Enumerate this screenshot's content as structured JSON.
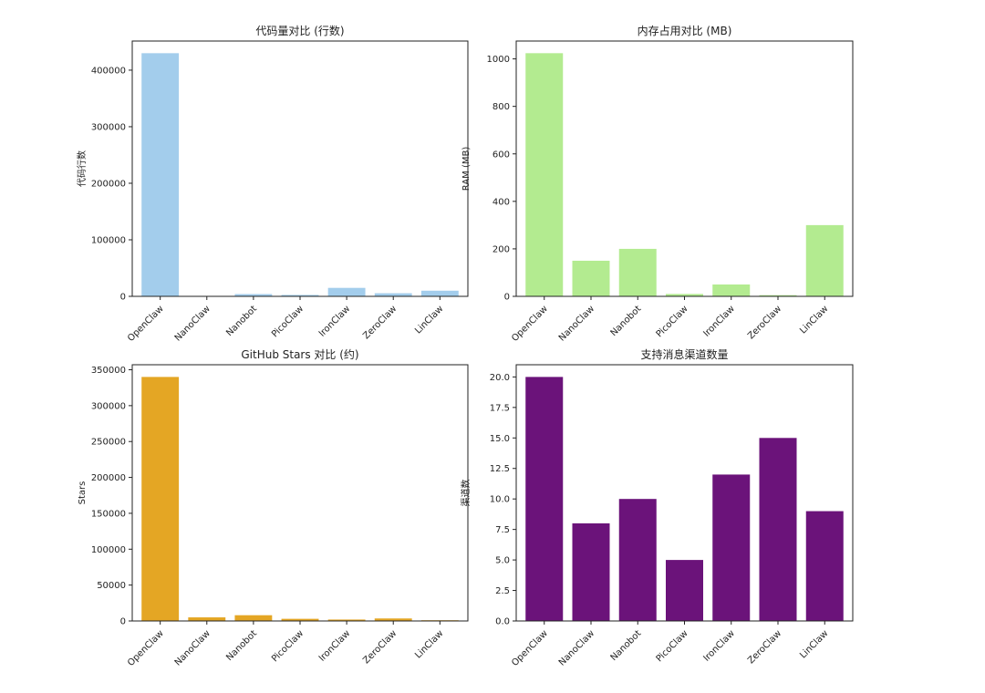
{
  "chart_data": [
    {
      "type": "bar",
      "title": "代码量对比 (行数)",
      "xlabel": "",
      "ylabel": "代码行数",
      "categories": [
        "OpenClaw",
        "NanoClaw",
        "Nanobot",
        "PicoClaw",
        "IronClaw",
        "ZeroClaw",
        "LinClaw"
      ],
      "values": [
        430000,
        500,
        4000,
        2500,
        15000,
        5500,
        10000
      ],
      "ylim": [
        0,
        451500
      ],
      "yticks": [
        0,
        100000,
        200000,
        300000,
        400000
      ],
      "ytick_labels": [
        "0",
        "100000",
        "200000",
        "300000",
        "400000"
      ],
      "color": "#a3cdec"
    },
    {
      "type": "bar",
      "title": "内存占用对比 (MB)",
      "xlabel": "",
      "ylabel": "RAM (MB)",
      "categories": [
        "OpenClaw",
        "NanoClaw",
        "Nanobot",
        "PicoClaw",
        "IronClaw",
        "ZeroClaw",
        "LinClaw"
      ],
      "values": [
        1024,
        150,
        200,
        10,
        50,
        5,
        300
      ],
      "ylim": [
        0,
        1075.2
      ],
      "yticks": [
        0,
        200,
        400,
        600,
        800,
        1000
      ],
      "ytick_labels": [
        "0",
        "200",
        "400",
        "600",
        "800",
        "1000"
      ],
      "color": "#b3eb90"
    },
    {
      "type": "bar",
      "title": "GitHub Stars 对比 (约)",
      "xlabel": "",
      "ylabel": "Stars",
      "categories": [
        "OpenClaw",
        "NanoClaw",
        "Nanobot",
        "PicoClaw",
        "IronClaw",
        "ZeroClaw",
        "LinClaw"
      ],
      "values": [
        340000,
        5000,
        8000,
        3000,
        2000,
        3500,
        1000
      ],
      "ylim": [
        0,
        357000
      ],
      "yticks": [
        0,
        50000,
        100000,
        150000,
        200000,
        250000,
        300000,
        350000
      ],
      "ytick_labels": [
        "0",
        "50000",
        "100000",
        "150000",
        "200000",
        "250000",
        "300000",
        "350000"
      ],
      "color": "#e4a624"
    },
    {
      "type": "bar",
      "title": "支持消息渠道数量",
      "xlabel": "",
      "ylabel": "渠道数",
      "categories": [
        "OpenClaw",
        "NanoClaw",
        "Nanobot",
        "PicoClaw",
        "IronClaw",
        "ZeroClaw",
        "LinClaw"
      ],
      "values": [
        20,
        8,
        10,
        5,
        12,
        15,
        9
      ],
      "ylim": [
        0,
        21
      ],
      "yticks": [
        0,
        2.5,
        5,
        7.5,
        10,
        12.5,
        15,
        17.5,
        20
      ],
      "ytick_labels": [
        "0.0",
        "2.5",
        "5.0",
        "7.5",
        "10.0",
        "12.5",
        "15.0",
        "17.5",
        "20.0"
      ],
      "color": "#6b137a"
    }
  ]
}
